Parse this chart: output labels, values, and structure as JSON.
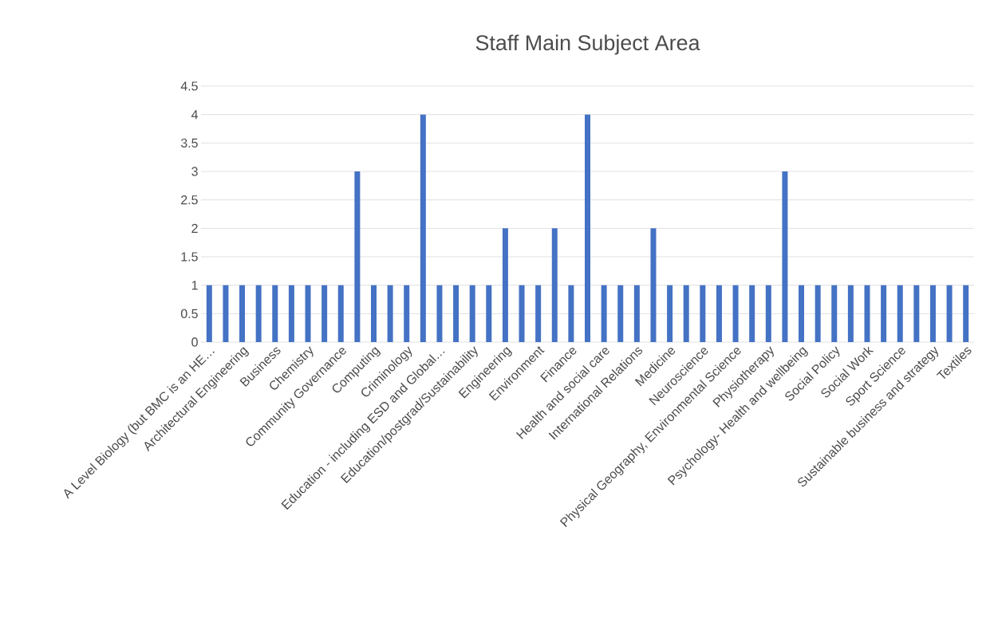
{
  "chart_data": {
    "type": "bar",
    "title": "Staff Main Subject Area",
    "categories": [
      "A Level Biology (but BMC is an HE…",
      null,
      "Architectural Engineering",
      null,
      "Business",
      null,
      "Chemistry",
      null,
      "Community Governance",
      null,
      "Computing",
      null,
      "Criminology",
      null,
      "Education - including ESD and Global…",
      null,
      "Education/postgrad/Sustainability",
      null,
      "Engineering",
      null,
      "Environment",
      null,
      "Finance",
      null,
      "Health and social care",
      null,
      "International Relations",
      null,
      "Medicine",
      null,
      "Neuroscience",
      null,
      "Physical Geography, Environmental Science",
      null,
      "Physiotherapy",
      null,
      "Psychology- Health and wellbeing",
      null,
      "Social Policy",
      null,
      "Social Work",
      null,
      "Sport Science",
      null,
      "Sustainable business and strategy",
      null,
      "Textiles"
    ],
    "values": [
      1,
      1,
      1,
      1,
      1,
      1,
      1,
      1,
      1,
      3,
      1,
      1,
      1,
      4,
      1,
      1,
      1,
      1,
      2,
      1,
      1,
      2,
      1,
      4,
      1,
      1,
      1,
      2,
      1,
      1,
      1,
      1,
      1,
      1,
      1,
      3,
      1,
      1,
      1,
      1,
      1,
      1,
      1,
      1,
      1,
      1,
      1
    ],
    "color": "#4472c4",
    "ylim": [
      0,
      4.5
    ],
    "yticks": [
      0,
      0.5,
      1,
      1.5,
      2,
      2.5,
      3,
      3.5,
      4,
      4.5
    ],
    "grid": "y"
  }
}
